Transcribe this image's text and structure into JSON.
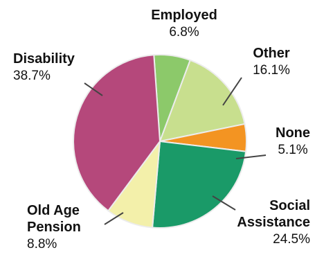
{
  "chart_data": {
    "type": "pie",
    "title": "",
    "series": [
      {
        "name": "Employed",
        "value": 6.8,
        "display": "6.8%",
        "color": "#8cc96a"
      },
      {
        "name": "Other",
        "value": 16.1,
        "display": "16.1%",
        "color": "#c8df8e"
      },
      {
        "name": "None",
        "value": 5.1,
        "display": "5.1%",
        "color": "#f39422"
      },
      {
        "name": "Social Assistance",
        "value": 24.5,
        "display": "24.5%",
        "color": "#1a9a68"
      },
      {
        "name": "Old Age Pension",
        "value": 8.8,
        "display": "8.8%",
        "color": "#f3f0aa"
      },
      {
        "name": "Disability",
        "value": 38.7,
        "display": "38.7%",
        "color": "#b5487b"
      }
    ],
    "start_angle_deg": -4,
    "legend": "none",
    "slice_border_color": "#ececec",
    "leader_color": "#444444"
  }
}
